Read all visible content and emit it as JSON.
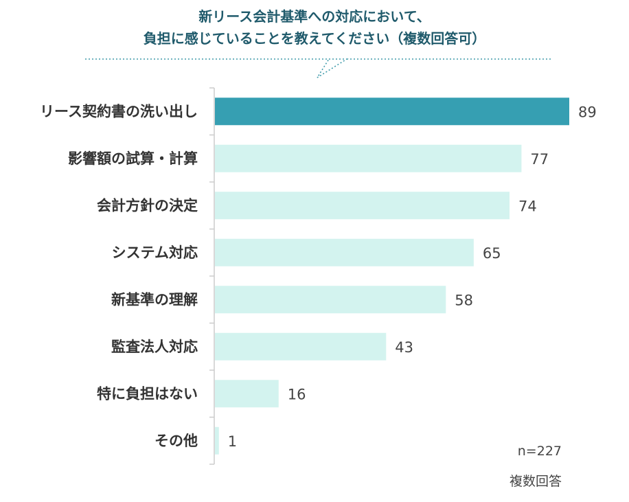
{
  "chart_data": {
    "type": "bar",
    "orientation": "horizontal",
    "title_lines": [
      "新リース会計基準への対応において、",
      "負担に感じていることを教えてください（複数回答可）"
    ],
    "categories": [
      "リース契約書の洗い出し",
      "影響額の試算・計算",
      "会計方針の決定",
      "システム対応",
      "新基準の理解",
      "監査法人対応",
      "特に負担はない",
      "その他"
    ],
    "values": [
      89,
      77,
      74,
      65,
      58,
      43,
      16,
      1
    ],
    "highlight_index": 0,
    "xlim": [
      0,
      89
    ],
    "grid": false,
    "colors": {
      "highlight": "#369fb2",
      "default": "#d3f3ef",
      "axis": "#cccccc",
      "callout": "#3e9aaa"
    }
  },
  "notes": {
    "sample": "n=227",
    "kind": "複数回答"
  }
}
